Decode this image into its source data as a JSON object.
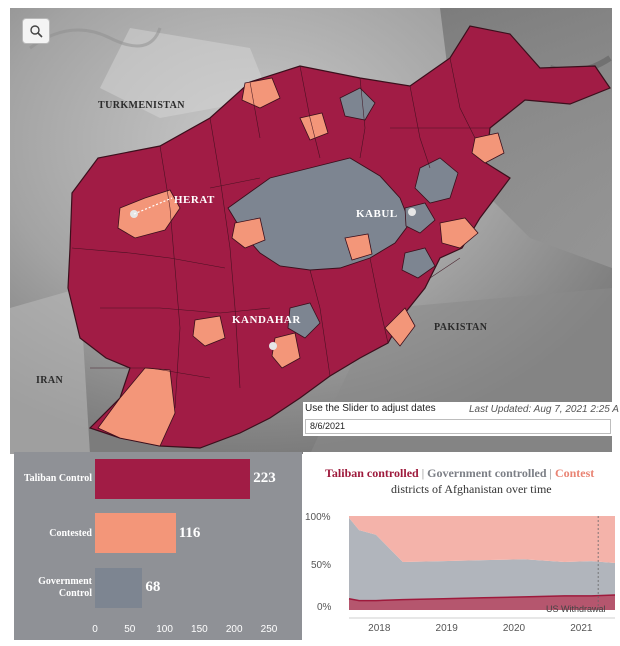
{
  "map": {
    "country_labels": [
      "TURKMENISTAN",
      "PAKISTAN",
      "IRAN"
    ],
    "city_labels": [
      "HERAT",
      "KABUL",
      "KANDAHAR"
    ],
    "zoom_icon": "magnifier-icon",
    "colors": {
      "taliban": "#a11c45",
      "contested": "#f39679",
      "government": "#7d8591",
      "terrain": "#9a9a9a",
      "border": "#3b0f1c"
    }
  },
  "slider": {
    "caption": "Use the Slider to adjust dates",
    "last_updated": "Last Updated: Aug 7, 2021 2:25 A",
    "date_value": "8/6/2021"
  },
  "chart_data": [
    {
      "type": "bar",
      "orientation": "horizontal",
      "categories": [
        "Taliban Control",
        "Contested",
        "Government Control"
      ],
      "values": [
        223,
        116,
        68
      ],
      "colors": [
        "#a11c45",
        "#f39679",
        "#7d8591"
      ],
      "xlim": [
        0,
        280
      ],
      "x_ticks": [
        "0",
        "50",
        "100",
        "150",
        "200",
        "250"
      ],
      "category_labels": {
        "taliban": "Taliban Control",
        "contested": "Contested",
        "government_line1": "Government",
        "government_line2": "Control"
      },
      "value_labels": [
        "223",
        "116",
        "68"
      ]
    },
    {
      "type": "area",
      "title_parts": {
        "taliban": "Taliban controlled",
        "sep": "|",
        "government": "Government controlled",
        "contested": "Contest"
      },
      "subtitle": "districts of Afghanistan over time",
      "y_ticks": [
        "100%",
        "50%",
        "0%"
      ],
      "x_ticks": [
        "2018",
        "2019",
        "2020",
        "2021"
      ],
      "annotation": "US Withdrawal",
      "ylim": [
        0,
        100
      ],
      "x": [
        2017.6,
        2017.75,
        2018.0,
        2018.4,
        2019.0,
        2019.6,
        2020.2,
        2020.8,
        2021.2,
        2021.55
      ],
      "series": [
        {
          "name": "Taliban controlled",
          "color": "#b5566e",
          "values": [
            12,
            10,
            10,
            11,
            12,
            13,
            14,
            15,
            15,
            16
          ]
        },
        {
          "name": "Government controlled",
          "color": "#b1b5bc",
          "values": [
            86,
            75,
            70,
            40,
            40,
            40,
            40,
            36,
            37,
            34
          ]
        },
        {
          "name": "Contested",
          "color": "#f4b3aa",
          "values": [
            2,
            15,
            20,
            49,
            48,
            47,
            46,
            49,
            48,
            50
          ]
        }
      ],
      "withdrawal_x": 2021.3
    }
  ]
}
